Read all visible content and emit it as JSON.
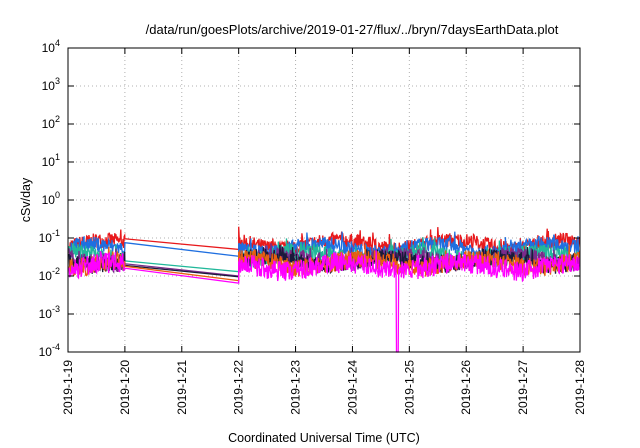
{
  "chart_data": {
    "type": "line",
    "title": "/data/run/goesPlots/archive/2019-01-27/flux/../bryn/7daysEarthData.plot",
    "xlabel": "Coordinated Universal Time (UTC)",
    "ylabel": "cSv/day",
    "y_scale": "log",
    "ylim": [
      0.0001,
      10000
    ],
    "xlim": [
      "2019-01-19",
      "2019-01-28"
    ],
    "grid": true,
    "legend": "none",
    "x_tick_labels": [
      "2019-1-19",
      "2019-1-20",
      "2019-1-21",
      "2019-1-22",
      "2019-1-23",
      "2019-1-24",
      "2019-1-25",
      "2019-1-26",
      "2019-1-27",
      "2019-1-28"
    ],
    "y_ticks": [
      {
        "base": "10",
        "exp": "-4"
      },
      {
        "base": "10",
        "exp": "-3"
      },
      {
        "base": "10",
        "exp": "-2"
      },
      {
        "base": "10",
        "exp": "-1"
      },
      {
        "base": "10",
        "exp": "0"
      },
      {
        "base": "10",
        "exp": "1"
      },
      {
        "base": "10",
        "exp": "2"
      },
      {
        "base": "10",
        "exp": "3"
      },
      {
        "base": "10",
        "exp": "4"
      }
    ],
    "data_gap": {
      "start": "2019-01-20",
      "end": "2019-01-22"
    },
    "dropout": {
      "at": "2019-01-24 19:00",
      "min": 0.0001
    },
    "series": [
      {
        "color": "#e8191c",
        "level": 0.07,
        "gap_start": 0.095,
        "gap_end": 0.05
      },
      {
        "color": "#1f6fe0",
        "level": 0.055,
        "gap_start": 0.075,
        "gap_end": 0.033
      },
      {
        "color": "#21b89a",
        "level": 0.035,
        "gap_start": 0.025,
        "gap_end": 0.013
      },
      {
        "color": "#7a2a8a",
        "level": 0.028,
        "gap_start": 0.021,
        "gap_end": 0.01
      },
      {
        "color": "#1a1a3a",
        "level": 0.025,
        "gap_start": 0.019,
        "gap_end": 0.0095
      },
      {
        "color": "#e86010",
        "level": 0.022,
        "gap_start": 0.018,
        "gap_end": 0.0075
      },
      {
        "color": "#ff00ff",
        "level": 0.018,
        "gap_start": 0.016,
        "gap_end": 0.0065
      }
    ]
  }
}
